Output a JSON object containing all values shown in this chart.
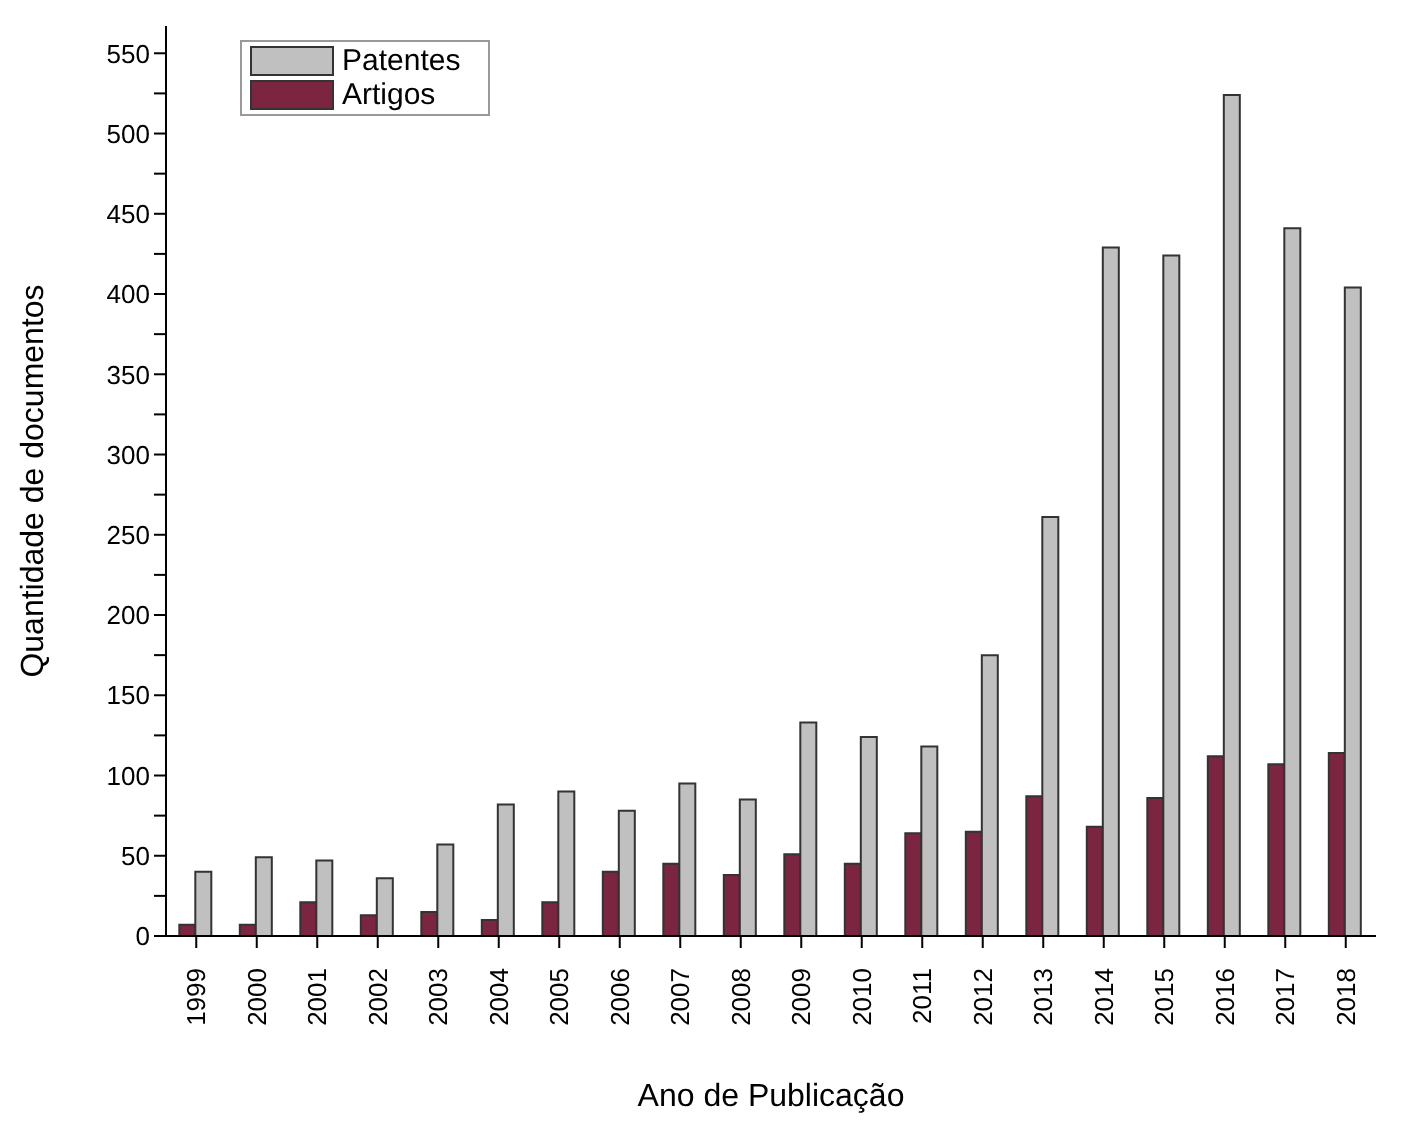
{
  "chart_data": {
    "type": "bar",
    "xlabel": "Ano de Publicação",
    "ylabel": "Quantidade de documentos",
    "categories": [
      "1999",
      "2000",
      "2001",
      "2002",
      "2003",
      "2004",
      "2005",
      "2006",
      "2007",
      "2008",
      "2009",
      "2010",
      "2011",
      "2012",
      "2013",
      "2014",
      "2015",
      "2016",
      "2017",
      "2018"
    ],
    "series": [
      {
        "name": "Artigos",
        "color": "#7b2540",
        "values": [
          7,
          7,
          21,
          13,
          15,
          10,
          21,
          40,
          45,
          38,
          51,
          45,
          64,
          65,
          87,
          68,
          86,
          112,
          107,
          114
        ]
      },
      {
        "name": "Patentes",
        "color": "#c0c0c0",
        "values": [
          40,
          49,
          47,
          36,
          57,
          82,
          90,
          78,
          95,
          85,
          133,
          124,
          118,
          175,
          261,
          429,
          424,
          524,
          441,
          404
        ]
      }
    ],
    "ylim": [
      0,
      567
    ],
    "yticks": [
      0,
      {
        "value": 25,
        "label": null
      },
      50,
      {
        "value": 75,
        "label": null
      },
      100,
      {
        "value": 125,
        "label": null
      },
      150,
      {
        "value": 175,
        "label": null
      },
      200,
      {
        "value": 225,
        "label": null
      },
      250,
      {
        "value": 275,
        "label": null
      },
      300,
      {
        "value": 325,
        "label": null
      },
      350,
      {
        "value": 375,
        "label": null
      },
      400,
      {
        "value": 425,
        "label": null
      },
      450,
      {
        "value": 475,
        "label": null
      },
      500,
      {
        "value": 525,
        "label": null
      },
      550
    ],
    "grid": false,
    "legend": "top left"
  }
}
